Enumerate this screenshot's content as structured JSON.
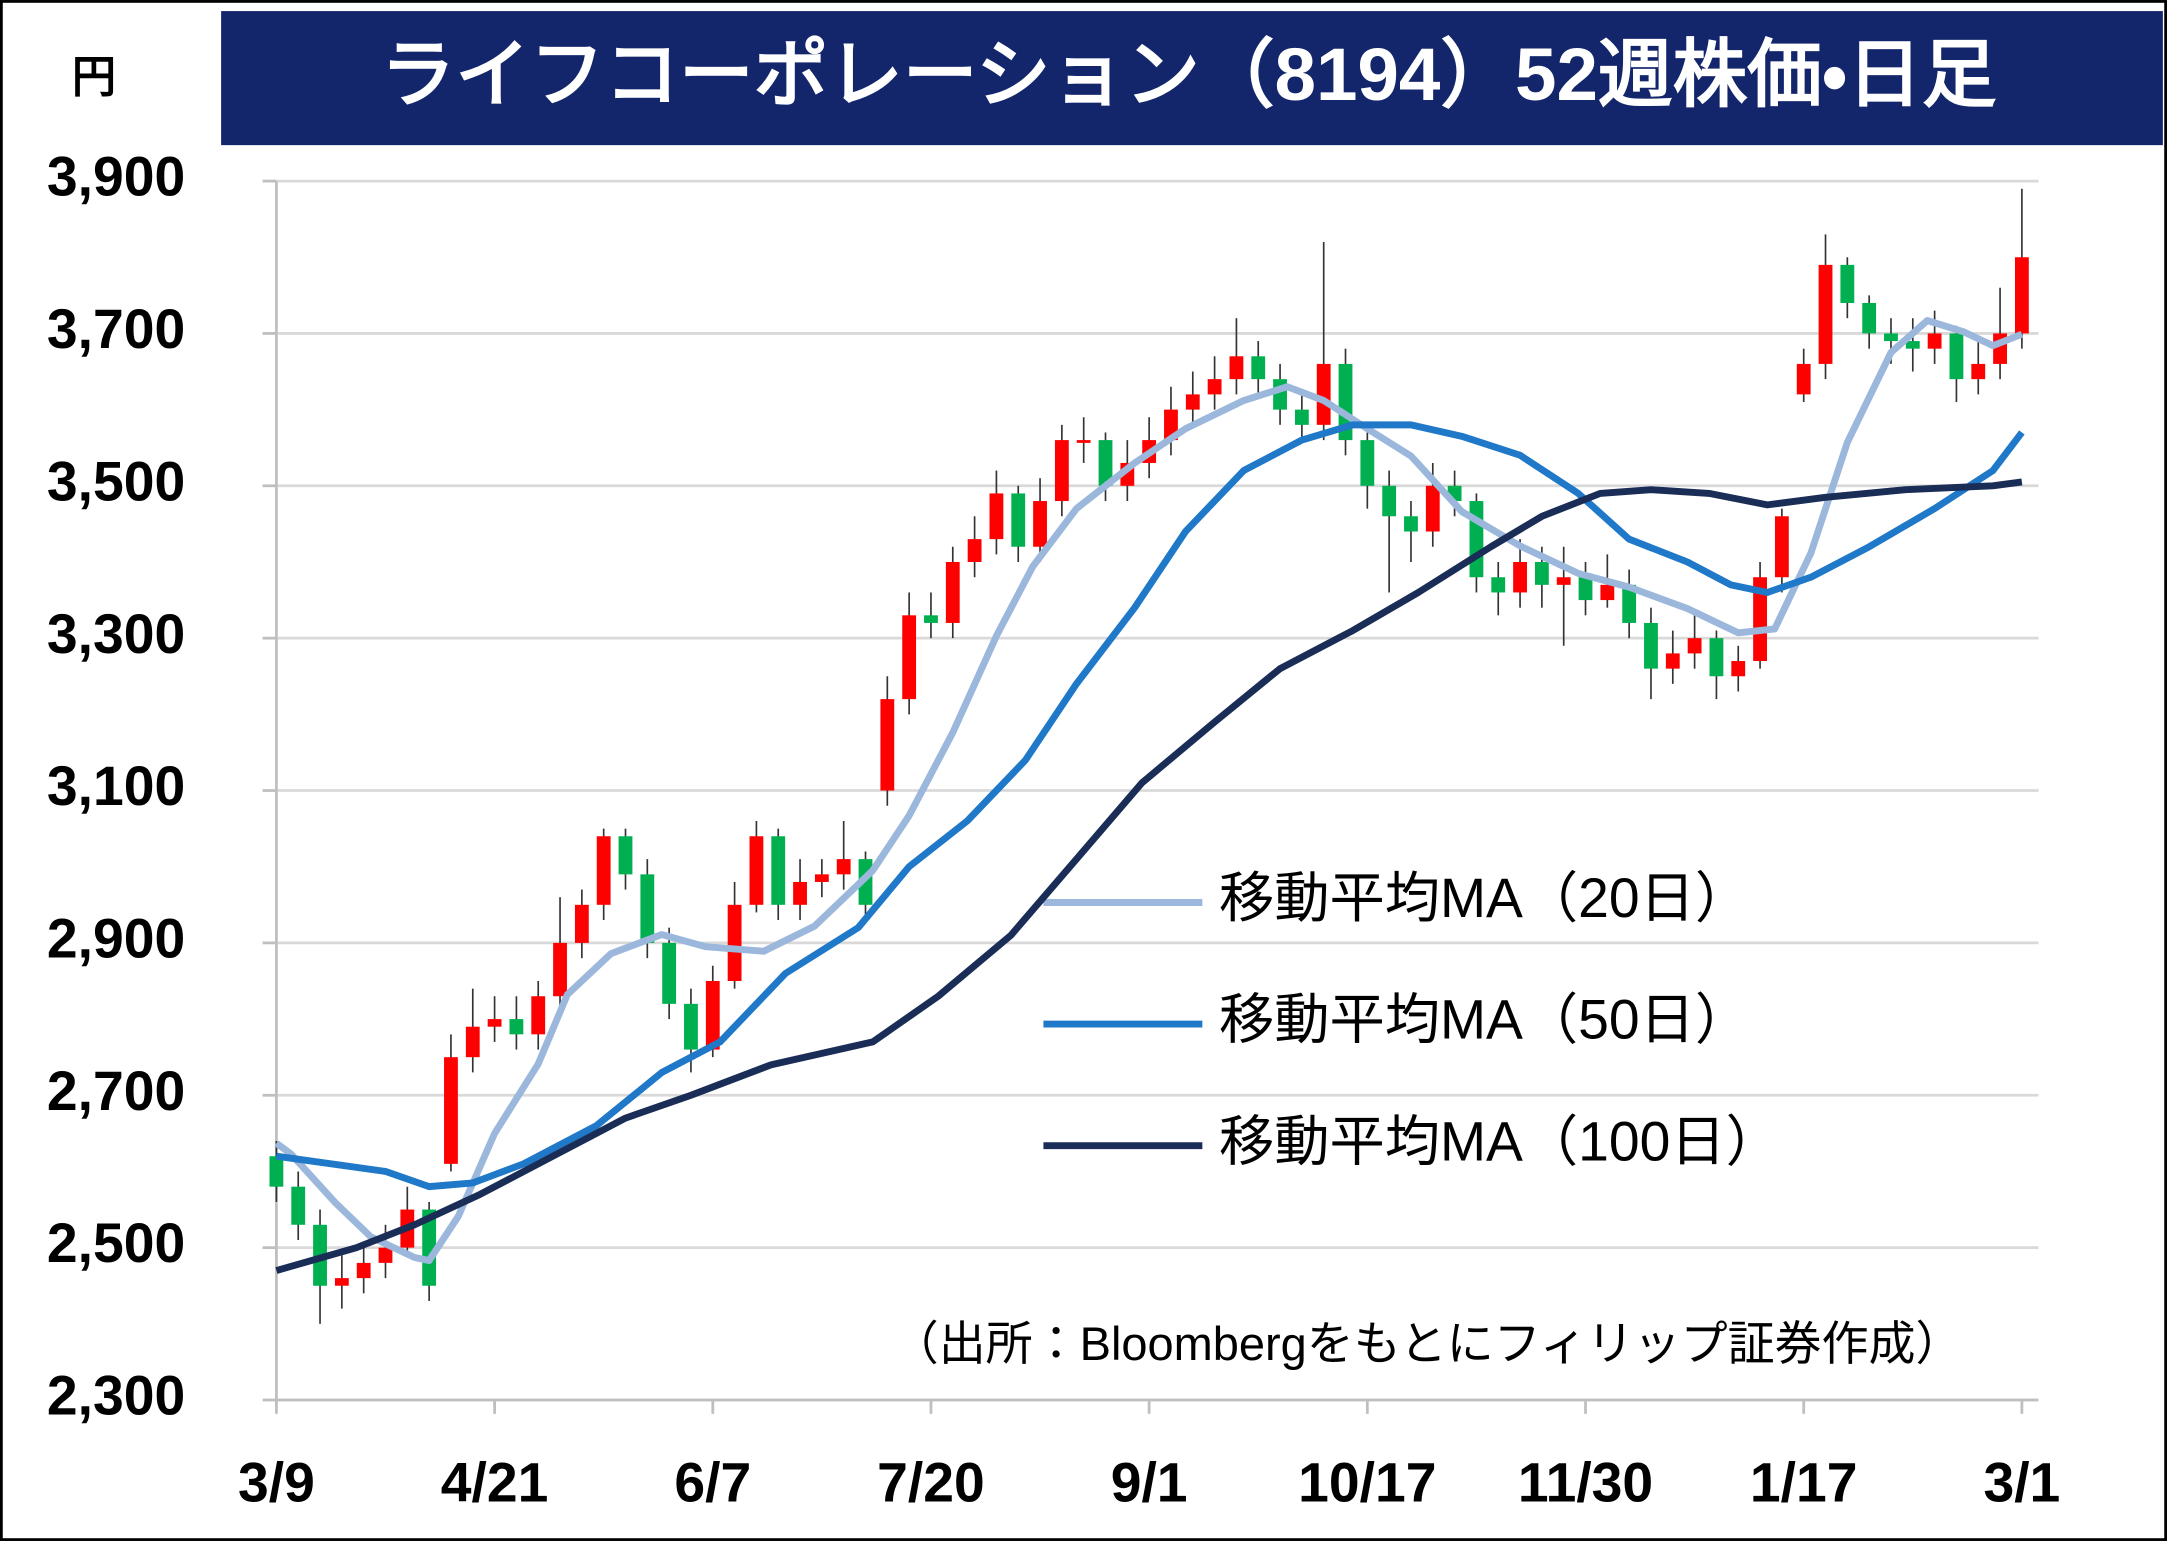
{
  "chart_data": {
    "type": "candlestick",
    "title": "ライフコーポレーション（8194）52週株価・日足",
    "y_unit": "円",
    "note": "（出所：Bloombergをもとにフィリップ証券作成）",
    "up_color": "#ff0000",
    "down_color": "#00b050",
    "x": [
      0,
      3,
      6,
      9,
      12,
      15,
      18,
      21,
      24,
      27,
      30,
      33,
      36,
      39,
      42,
      45,
      48,
      51,
      54,
      57,
      60,
      63,
      66,
      69,
      72,
      75,
      78,
      81,
      84,
      87,
      90,
      93,
      96,
      99,
      102,
      105,
      108,
      111,
      114,
      117,
      120,
      123,
      126,
      129,
      132,
      135,
      138,
      141,
      144,
      147,
      150,
      153,
      156,
      159,
      162,
      165,
      168,
      171,
      174,
      177,
      180,
      183,
      186,
      189,
      192,
      195,
      198,
      201,
      204,
      207,
      210,
      213,
      216,
      219,
      222,
      225,
      228,
      231,
      234,
      237,
      240
    ],
    "open": [
      2620,
      2580,
      2530,
      2450,
      2460,
      2480,
      2500,
      2550,
      2610,
      2750,
      2790,
      2800,
      2780,
      2830,
      2900,
      2950,
      3040,
      2990,
      2900,
      2820,
      2760,
      2850,
      2950,
      3040,
      2950,
      2980,
      2990,
      3010,
      3100,
      3220,
      3330,
      3320,
      3400,
      3430,
      3490,
      3420,
      3480,
      3560,
      3560,
      3500,
      3530,
      3560,
      3600,
      3620,
      3640,
      3670,
      3640,
      3600,
      3580,
      3660,
      3560,
      3500,
      3460,
      3440,
      3500,
      3480,
      3380,
      3360,
      3400,
      3370,
      3380,
      3350,
      3370,
      3320,
      3260,
      3280,
      3300,
      3250,
      3270,
      3380,
      3620,
      3660,
      3790,
      3740,
      3700,
      3690,
      3680,
      3700,
      3640,
      3660,
      3700
    ],
    "high": [
      2640,
      2600,
      2550,
      2490,
      2500,
      2530,
      2580,
      2560,
      2780,
      2840,
      2830,
      2830,
      2850,
      2960,
      2970,
      3050,
      3050,
      3010,
      2920,
      2840,
      2870,
      2980,
      3060,
      3050,
      3010,
      3010,
      3060,
      3020,
      3250,
      3360,
      3360,
      3420,
      3460,
      3520,
      3500,
      3510,
      3580,
      3590,
      3570,
      3560,
      3590,
      3630,
      3650,
      3670,
      3720,
      3690,
      3660,
      3620,
      3820,
      3680,
      3570,
      3520,
      3480,
      3530,
      3520,
      3490,
      3400,
      3430,
      3420,
      3420,
      3400,
      3410,
      3390,
      3340,
      3310,
      3330,
      3310,
      3290,
      3400,
      3470,
      3680,
      3830,
      3800,
      3750,
      3720,
      3720,
      3730,
      3710,
      3690,
      3760,
      3890
    ],
    "low": [
      2560,
      2510,
      2400,
      2420,
      2440,
      2460,
      2490,
      2430,
      2600,
      2730,
      2770,
      2760,
      2760,
      2810,
      2880,
      2930,
      2970,
      2880,
      2800,
      2730,
      2750,
      2840,
      2940,
      2930,
      2930,
      2960,
      2970,
      2930,
      3080,
      3200,
      3300,
      3300,
      3380,
      3410,
      3400,
      3400,
      3460,
      3530,
      3480,
      3480,
      3510,
      3540,
      3580,
      3600,
      3620,
      3620,
      3580,
      3560,
      3560,
      3540,
      3470,
      3360,
      3400,
      3420,
      3460,
      3360,
      3330,
      3340,
      3340,
      3290,
      3330,
      3340,
      3300,
      3220,
      3240,
      3260,
      3220,
      3230,
      3260,
      3360,
      3610,
      3640,
      3720,
      3680,
      3660,
      3650,
      3660,
      3610,
      3620,
      3640,
      3680
    ],
    "close": [
      2580,
      2530,
      2450,
      2460,
      2480,
      2500,
      2550,
      2450,
      2750,
      2790,
      2800,
      2780,
      2830,
      2900,
      2950,
      3040,
      2990,
      2900,
      2820,
      2760,
      2850,
      2950,
      3040,
      2950,
      2980,
      2990,
      3010,
      2950,
      3220,
      3330,
      3320,
      3400,
      3430,
      3490,
      3420,
      3480,
      3560,
      3560,
      3500,
      3530,
      3560,
      3600,
      3620,
      3640,
      3670,
      3640,
      3600,
      3580,
      3660,
      3560,
      3500,
      3460,
      3440,
      3500,
      3480,
      3380,
      3360,
      3400,
      3370,
      3380,
      3350,
      3370,
      3320,
      3260,
      3280,
      3300,
      3250,
      3270,
      3380,
      3460,
      3660,
      3790,
      3740,
      3700,
      3690,
      3680,
      3700,
      3640,
      3660,
      3700,
      3800
    ],
    "series": [
      {
        "name": "移動平均MA（20日）",
        "color": "#9bb7db",
        "x": [
          0,
          2,
          8,
          13,
          19,
          21,
          25,
          30,
          36,
          40,
          46,
          53,
          59,
          67,
          74,
          82,
          87,
          93,
          99,
          104,
          110,
          118,
          125,
          133,
          139,
          144,
          150,
          156,
          163,
          171,
          179,
          186,
          194,
          201,
          206,
          211,
          216,
          222,
          227,
          232,
          236,
          240
        ],
        "values": [
          2637,
          2623,
          2560,
          2514,
          2487,
          2483,
          2541,
          2650,
          2741,
          2832,
          2886,
          2911,
          2895,
          2889,
          2922,
          2995,
          3067,
          3176,
          3303,
          3394,
          3470,
          3530,
          3575,
          3612,
          3630,
          3612,
          3575,
          3539,
          3466,
          3421,
          3385,
          3367,
          3339,
          3307,
          3312,
          3412,
          3557,
          3675,
          3717,
          3702,
          3684,
          3699
        ]
      },
      {
        "name": "移動平均MA（50日）",
        "color": "#1f78c8",
        "x": [
          0,
          15,
          21,
          27,
          34,
          44,
          53,
          61,
          70,
          80,
          87,
          95,
          103,
          110,
          118,
          125,
          133,
          141,
          148,
          156,
          163,
          171,
          179,
          186,
          194,
          200,
          205,
          211,
          219,
          228,
          236,
          240
        ],
        "values": [
          2620,
          2600,
          2580,
          2585,
          2610,
          2660,
          2730,
          2770,
          2860,
          2920,
          3000,
          3060,
          3140,
          3240,
          3340,
          3440,
          3520,
          3560,
          3580,
          3580,
          3565,
          3540,
          3490,
          3430,
          3400,
          3370,
          3360,
          3380,
          3420,
          3470,
          3520,
          3570
        ]
      },
      {
        "name": "移動平均MA（100日）",
        "color": "#1a2d57",
        "x": [
          0,
          11,
          19,
          28,
          38,
          48,
          57,
          68,
          82,
          91,
          101,
          110,
          119,
          129,
          138,
          148,
          157,
          167,
          174,
          182,
          189,
          197,
          205,
          213,
          224,
          236,
          240
        ],
        "values": [
          2470,
          2500,
          2530,
          2570,
          2620,
          2670,
          2700,
          2740,
          2770,
          2830,
          2910,
          3010,
          3110,
          3190,
          3260,
          3310,
          3360,
          3420,
          3460,
          3490,
          3495,
          3490,
          3475,
          3485,
          3495,
          3500,
          3505
        ]
      }
    ],
    "xlim": [
      0,
      240
    ],
    "xticks": [
      {
        "value": 0,
        "label": "3/9"
      },
      {
        "value": 30,
        "label": "4/21"
      },
      {
        "value": 60,
        "label": "6/7"
      },
      {
        "value": 90,
        "label": "7/20"
      },
      {
        "value": 120,
        "label": "9/1"
      },
      {
        "value": 150,
        "label": "10/17"
      },
      {
        "value": 180,
        "label": "11/30"
      },
      {
        "value": 210,
        "label": "1/17"
      },
      {
        "value": 240,
        "label": "3/1"
      }
    ],
    "ylim": [
      2300,
      3900
    ],
    "yticks": [
      {
        "value": 2300,
        "label": "2,300"
      },
      {
        "value": 2500,
        "label": "2,500"
      },
      {
        "value": 2700,
        "label": "2,700"
      },
      {
        "value": 2900,
        "label": "2,900"
      },
      {
        "value": 3100,
        "label": "3,100"
      },
      {
        "value": 3300,
        "label": "3,300"
      },
      {
        "value": 3500,
        "label": "3,500"
      },
      {
        "value": 3700,
        "label": "3,700"
      },
      {
        "value": 3900,
        "label": "3,900"
      }
    ],
    "grid": true
  }
}
